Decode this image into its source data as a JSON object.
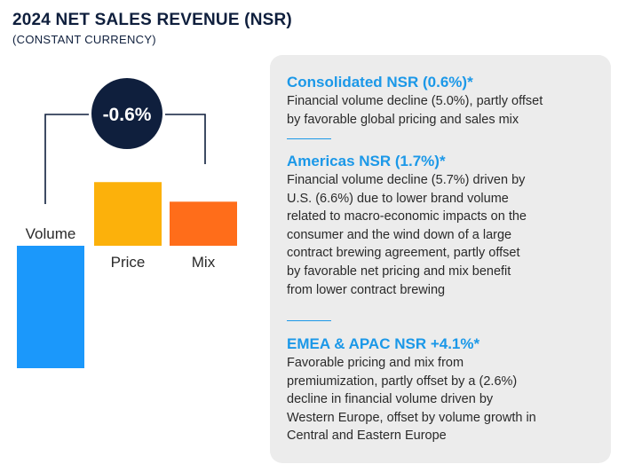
{
  "header": {
    "title": "2024 NET SALES REVENUE (NSR)",
    "subtitle": "(CONSTANT CURRENCY)"
  },
  "chart_data": {
    "type": "bar",
    "title": "2024 NET SALES REVENUE (NSR)",
    "subtitle": "(CONSTANT CURRENCY)",
    "total_label": "-0.6%",
    "total_value": -0.6,
    "categories": [
      "Volume",
      "Price",
      "Mix"
    ],
    "values": [
      -5.0,
      2.6,
      1.8
    ],
    "colors": [
      "#1b98fb",
      "#fcb10b",
      "#ff6d1a"
    ],
    "xlabel": "",
    "ylabel": "",
    "ylim": [
      -5.0,
      2.6
    ],
    "grid": false,
    "legend": "none"
  },
  "panel": {
    "sections": [
      {
        "title": "Consolidated NSR (0.6%)*",
        "lines": [
          "Financial volume decline (5.0%), partly offset",
          "by favorable global pricing and sales mix"
        ]
      },
      {
        "title": "Americas NSR (1.7%)*",
        "lines": [
          "Financial volume decline (5.7%) driven by",
          "U.S. (6.6%) due to lower brand volume",
          "related to macro-economic impacts on the",
          "consumer and the wind down of a large",
          "contract brewing agreement, partly offset",
          "by favorable net pricing and mix benefit",
          "from lower contract brewing"
        ]
      },
      {
        "title": "EMEA & APAC NSR +4.1%*",
        "lines": [
          "Favorable pricing and mix from",
          "premiumization, partly offset by a (2.6%)",
          "decline in financial volume driven by",
          "Western Europe, offset by volume growth in",
          "Central and Eastern Europe"
        ]
      }
    ]
  }
}
